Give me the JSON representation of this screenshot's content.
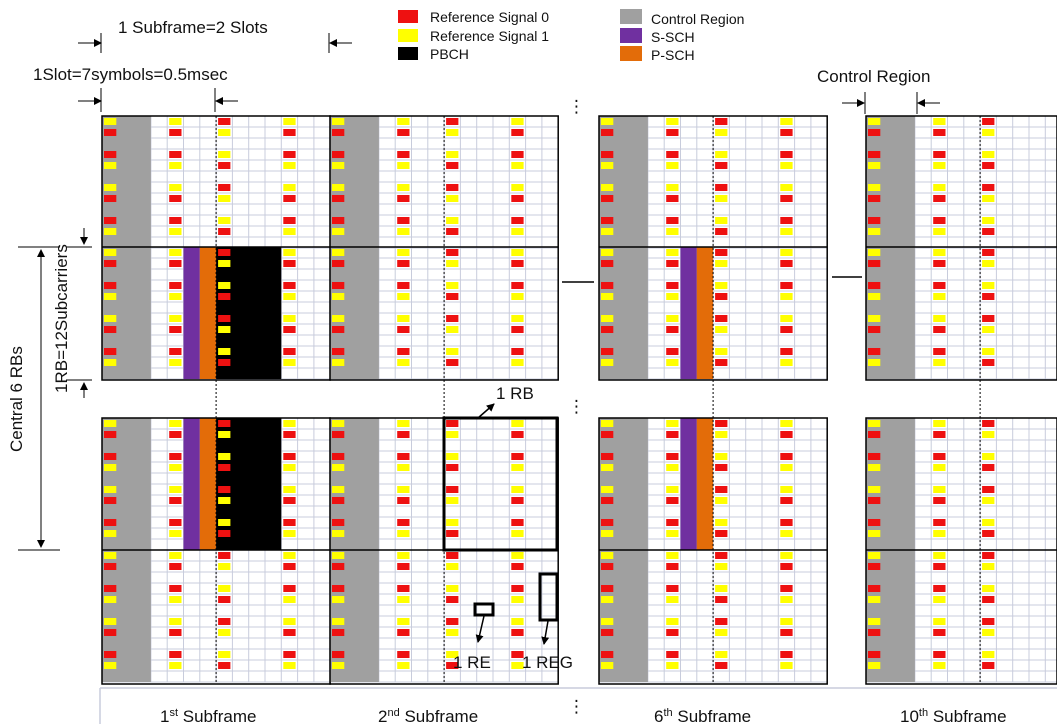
{
  "colors": {
    "reference_signal_0": "#ee1111",
    "reference_signal_1": "#ffff00",
    "pbch": "#000000",
    "control_region": "#a0a0a0",
    "s_sch": "#7030a0",
    "p_sch": "#e36c09",
    "grid_line": "#c8ccdc",
    "frame_line": "#000000"
  },
  "legend": {
    "items": [
      {
        "key": "reference_signal_0",
        "label": "Reference Signal 0"
      },
      {
        "key": "reference_signal_1",
        "label": "Reference Signal 1"
      },
      {
        "key": "pbch",
        "label": "PBCH"
      },
      {
        "key": "control_region",
        "label": "Control Region"
      },
      {
        "key": "s_sch",
        "label": "S-SCH"
      },
      {
        "key": "p_sch",
        "label": "P-SCH"
      }
    ]
  },
  "annotations": {
    "subframe_span": "1 Subframe=2 Slots",
    "slot_span": "1Slot=7symbols=0.5msec",
    "control_region": "Control Region",
    "central_rbs": "Central 6 RBs",
    "rb_size": "1RB=12Subcarriers",
    "one_rb": "1 RB",
    "one_re": "1 RE",
    "one_reg": "1 REG",
    "ellipsis": "⋮"
  },
  "subframes": [
    {
      "num": "1",
      "sup": "st",
      "rest": " Subframe",
      "sync": true
    },
    {
      "num": "2",
      "sup": "nd",
      "rest": " Subframe",
      "sync": false
    },
    {
      "num": "6",
      "sup": "th",
      "rest": " Subframe",
      "sync": true
    },
    {
      "num": "10",
      "sup": "th",
      "rest": " Subframe",
      "sync": false
    }
  ]
}
